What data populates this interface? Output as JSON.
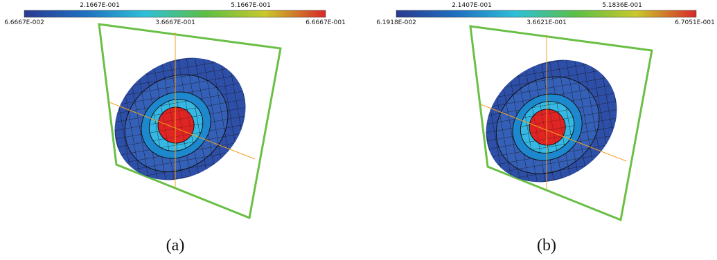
{
  "panels": [
    {
      "colorbar": {
        "top_labels": [
          "2.1667E-001",
          "5.1667E-001"
        ],
        "bottom_labels": [
          "6.6667E-002",
          "3.6667E-001",
          "6.6667E-001"
        ]
      },
      "caption": "(a)"
    },
    {
      "colorbar": {
        "top_labels": [
          "2.1407E-001",
          "5.1836E-001"
        ],
        "bottom_labels": [
          "6.1918E-002",
          "3.6621E-001",
          "6.7051E-001"
        ]
      },
      "caption": "(b)"
    }
  ]
}
